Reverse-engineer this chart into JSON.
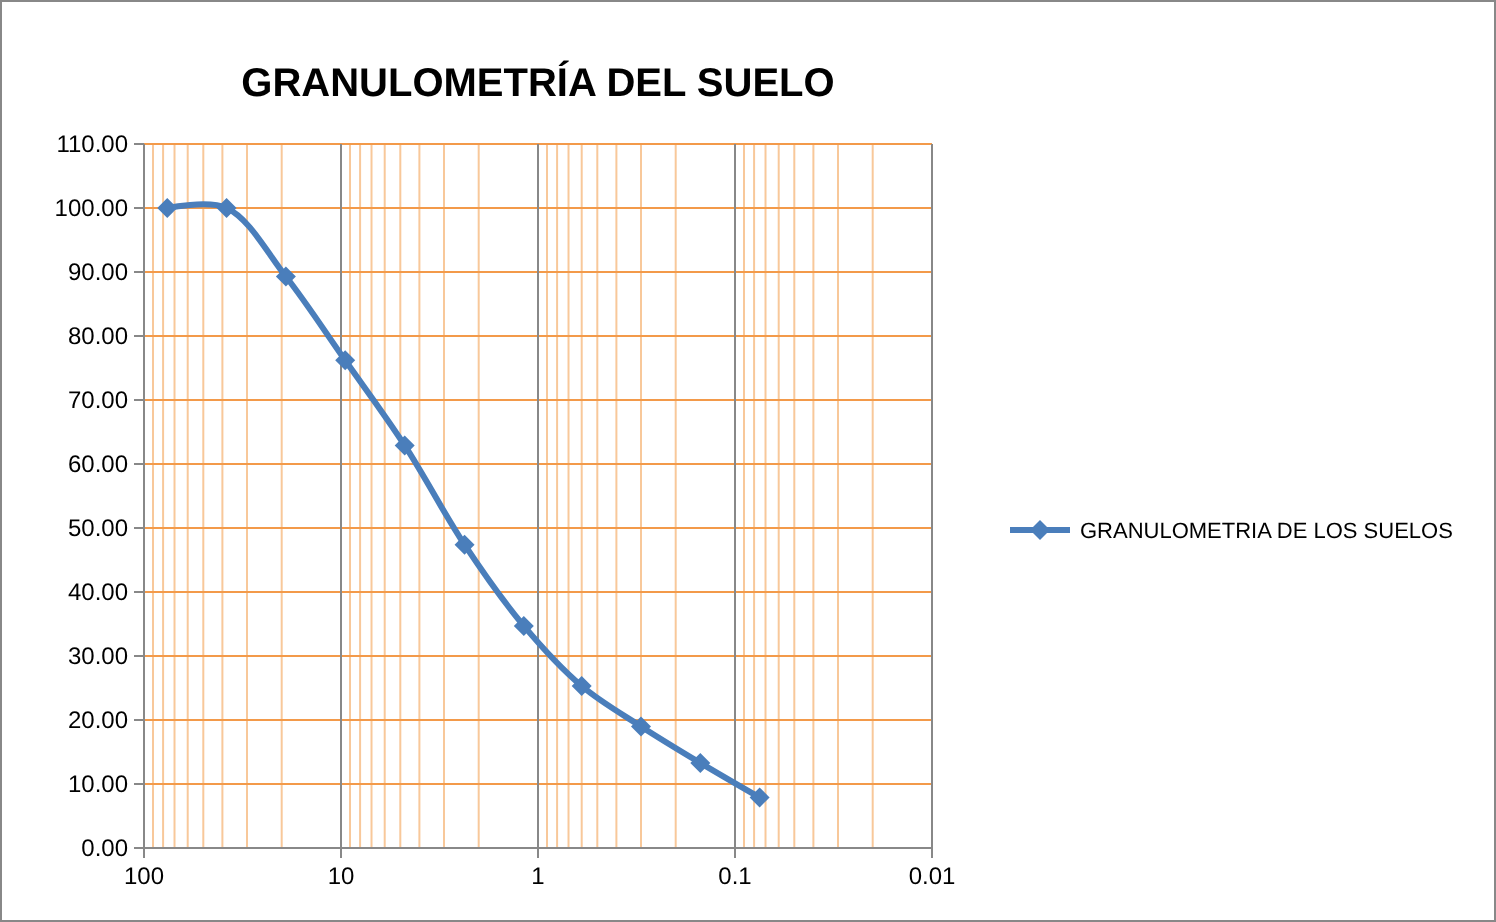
{
  "chart_data": {
    "type": "line",
    "title": "GRANULOMETRÍA DEL SUELO",
    "series": [
      {
        "name": "GRANULOMETRIA DE LOS SUELOS",
        "color": "#4a7ebb",
        "x": [
          76.2,
          38.1,
          19.05,
          9.525,
          4.75,
          2.36,
          1.18,
          0.6,
          0.3,
          0.15,
          0.075
        ],
        "values": [
          100,
          100,
          89.3,
          76.2,
          62.9,
          47.4,
          34.7,
          25.3,
          19.0,
          13.3,
          7.9
        ]
      }
    ],
    "xlim": [
      100,
      0.01
    ],
    "xticks": [
      100,
      {
        "value": 90,
        "label": null
      },
      {
        "value": 80,
        "label": null
      },
      {
        "value": 70,
        "label": null
      },
      {
        "value": 60,
        "label": null
      },
      {
        "value": 50,
        "label": null
      },
      {
        "value": 40,
        "label": null
      },
      {
        "value": 30,
        "label": null
      },
      {
        "value": 20,
        "label": null
      },
      10,
      {
        "value": 9,
        "label": null
      },
      {
        "value": 8,
        "label": null
      },
      {
        "value": 7,
        "label": null
      },
      {
        "value": 6,
        "label": null
      },
      {
        "value": 5,
        "label": null
      },
      {
        "value": 4,
        "label": null
      },
      {
        "value": 3,
        "label": null
      },
      {
        "value": 2,
        "label": null
      },
      1,
      {
        "value": 0.9,
        "label": null
      },
      {
        "value": 0.8,
        "label": null
      },
      {
        "value": 0.7,
        "label": null
      },
      {
        "value": 0.6,
        "label": null
      },
      {
        "value": 0.5,
        "label": null
      },
      {
        "value": 0.4,
        "label": null
      },
      {
        "value": 0.3,
        "label": null
      },
      {
        "value": 0.2,
        "label": null
      },
      0.1,
      {
        "value": 0.09,
        "label": null
      },
      {
        "value": 0.08,
        "label": null
      },
      {
        "value": 0.07,
        "label": null
      },
      {
        "value": 0.06,
        "label": null
      },
      {
        "value": 0.05,
        "label": null
      },
      {
        "value": 0.04,
        "label": null
      },
      {
        "value": 0.03,
        "label": null
      },
      {
        "value": 0.02,
        "label": null
      },
      0.01
    ],
    "log": "x",
    "ylim": [
      0,
      110
    ],
    "yticks": [
      {
        "value": 0,
        "label": "0.00"
      },
      {
        "value": 10,
        "label": "10.00"
      },
      {
        "value": 20,
        "label": "20.00"
      },
      {
        "value": 30,
        "label": "30.00"
      },
      {
        "value": 40,
        "label": "40.00"
      },
      {
        "value": 50,
        "label": "50.00"
      },
      {
        "value": 60,
        "label": "60.00"
      },
      {
        "value": 70,
        "label": "70.00"
      },
      {
        "value": 80,
        "label": "80.00"
      },
      {
        "value": 90,
        "label": "90.00"
      },
      {
        "value": 100,
        "label": "100.00"
      },
      {
        "value": 110,
        "label": "110.00"
      }
    ],
    "grid": true,
    "legend": "right",
    "marker": "diamond",
    "line_style": "solid"
  }
}
